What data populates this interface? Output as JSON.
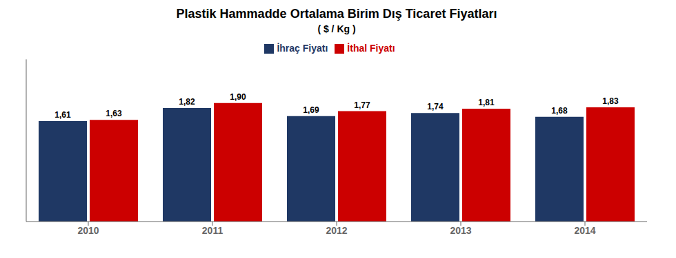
{
  "chart_data": {
    "type": "bar",
    "title": "Plastik Hammadde Ortalama Birim Dış Ticaret Fiyatları",
    "subtitle": "( $ / Kg )",
    "categories": [
      "2010",
      "2011",
      "2012",
      "2013",
      "2014"
    ],
    "series": [
      {
        "name": "İhraç Fiyatı",
        "color": "#1F3864",
        "values": [
          1.61,
          1.82,
          1.69,
          1.74,
          1.68
        ],
        "value_labels": [
          "1,61",
          "1,82",
          "1,69",
          "1,74",
          "1,68"
        ]
      },
      {
        "name": "İthal Fiyatı",
        "color": "#CC0000",
        "values": [
          1.63,
          1.9,
          1.77,
          1.81,
          1.83
        ],
        "value_labels": [
          "1,63",
          "1,90",
          "1,77",
          "1,81",
          "1,83"
        ]
      }
    ],
    "ylim": [
      0,
      2.6
    ],
    "grid": false,
    "legend": "upper center",
    "data_labels": true,
    "tick_labels": "x"
  }
}
